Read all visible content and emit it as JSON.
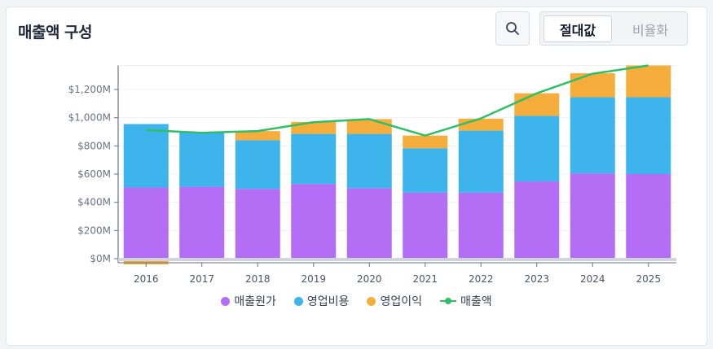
{
  "header": {
    "title": "매출액 구성"
  },
  "toolbar": {
    "search_icon": "search-icon",
    "toggle_active": "절대값",
    "toggle_inactive": "비율화"
  },
  "colors": {
    "cost": "#b36ef5",
    "opex": "#3db4ec",
    "profit": "#f5ae3b",
    "revenue": "#2fbf66"
  },
  "chart_data": {
    "type": "bar",
    "stacked": true,
    "categories": [
      "2016",
      "2017",
      "2018",
      "2019",
      "2020",
      "2021",
      "2022",
      "2023",
      "2024",
      "2025"
    ],
    "ylim": [
      -40,
      1370
    ],
    "yticks": [
      0,
      200,
      400,
      600,
      800,
      1000,
      1200
    ],
    "ytick_labels": [
      "$0M",
      "$200M",
      "$400M",
      "$600M",
      "$800M",
      "$1,000M",
      "$1,200M"
    ],
    "series": [
      {
        "name": "매출원가",
        "key": "cost",
        "values": [
          505,
          510,
          495,
          530,
          500,
          468,
          468,
          548,
          605,
          600
        ]
      },
      {
        "name": "영업비용",
        "key": "opex",
        "values": [
          450,
          390,
          345,
          355,
          385,
          315,
          440,
          465,
          540,
          545
        ]
      },
      {
        "name": "영업이익",
        "key": "profit",
        "values": [
          -40,
          -18,
          65,
          85,
          105,
          90,
          85,
          160,
          170,
          225
        ]
      }
    ],
    "line": {
      "name": "매출액",
      "values": [
        912,
        893,
        905,
        968,
        990,
        873,
        995,
        1173,
        1312,
        1370
      ]
    },
    "legend_position": "bottom",
    "grid": true
  }
}
